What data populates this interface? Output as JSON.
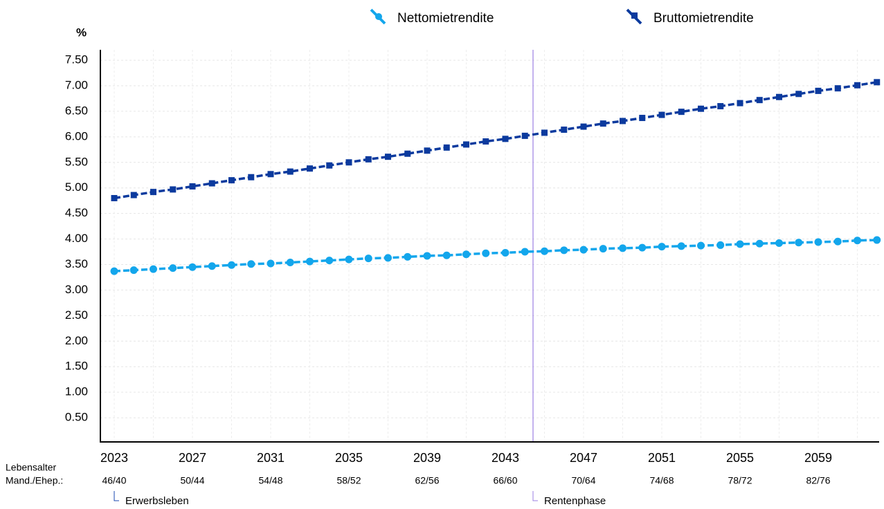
{
  "chart_data": {
    "type": "line",
    "y_label": "%",
    "categories": [
      "2023",
      null,
      null,
      null,
      "2027",
      null,
      null,
      null,
      "2031",
      null,
      null,
      null,
      "2035",
      null,
      null,
      null,
      "2039",
      null,
      null,
      null,
      "2043",
      null,
      null,
      null,
      "2047",
      null,
      null,
      null,
      "2051",
      null,
      null,
      null,
      "2055",
      null,
      null,
      null,
      "2059",
      null,
      null,
      null
    ],
    "age_labels": [
      "46/40",
      null,
      null,
      null,
      "50/44",
      null,
      null,
      null,
      "54/48",
      null,
      null,
      null,
      "58/52",
      null,
      null,
      null,
      "62/56",
      null,
      null,
      null,
      "66/60",
      null,
      null,
      null,
      "70/64",
      null,
      null,
      null,
      "74/68",
      null,
      null,
      null,
      "78/72",
      null,
      null,
      null,
      "82/76",
      null,
      null,
      null
    ],
    "row_labels": [
      "Lebensalter",
      "Mand./Ehep.:"
    ],
    "phases": [
      {
        "name": "Erwerbsleben",
        "color": "#1a47b0",
        "first_category": "2023"
      },
      {
        "name": "Rentenphase",
        "color": "#9b7fe3",
        "first_category": "2047"
      }
    ],
    "series": [
      {
        "name": "Nettomietrendite",
        "color": "#13a6ec",
        "marker": "circle",
        "values": [
          3.37,
          3.39,
          3.41,
          3.43,
          3.45,
          3.47,
          3.49,
          3.51,
          3.52,
          3.54,
          3.56,
          3.58,
          3.6,
          3.62,
          3.63,
          3.65,
          3.67,
          3.68,
          3.7,
          3.72,
          3.73,
          3.75,
          3.76,
          3.78,
          3.79,
          3.81,
          3.82,
          3.83,
          3.85,
          3.86,
          3.87,
          3.88,
          3.9,
          3.91,
          3.92,
          3.93,
          3.94,
          3.95,
          3.97,
          3.98
        ]
      },
      {
        "name": "Bruttomietrendite",
        "color": "#0b3a9e",
        "marker": "square",
        "values": [
          4.8,
          4.86,
          4.92,
          4.97,
          5.03,
          5.09,
          5.15,
          5.21,
          5.27,
          5.32,
          5.38,
          5.44,
          5.5,
          5.56,
          5.61,
          5.67,
          5.73,
          5.79,
          5.85,
          5.91,
          5.96,
          6.02,
          6.08,
          6.14,
          6.2,
          6.26,
          6.31,
          6.37,
          6.43,
          6.49,
          6.55,
          6.6,
          6.66,
          6.72,
          6.78,
          6.84,
          6.9,
          6.95,
          7.01,
          7.07
        ]
      }
    ],
    "ylim": [
      0,
      7.7
    ],
    "yticks": [
      {
        "value": 0.5,
        "label": "0.50"
      },
      {
        "value": 1,
        "label": "1.00"
      },
      {
        "value": 1.5,
        "label": "1.50"
      },
      {
        "value": 2,
        "label": "2.00"
      },
      {
        "value": 2.5,
        "label": "2.50"
      },
      {
        "value": 3,
        "label": "3.00"
      },
      {
        "value": 3.5,
        "label": "3.50"
      },
      {
        "value": 4,
        "label": "4.00"
      },
      {
        "value": 4.5,
        "label": "4.50"
      },
      {
        "value": 5,
        "label": "5.00"
      },
      {
        "value": 5.5,
        "label": "5.50"
      },
      {
        "value": 6,
        "label": "6.00"
      },
      {
        "value": 6.5,
        "label": "6.50"
      },
      {
        "value": 7,
        "label": "7.00"
      },
      {
        "value": 7.5,
        "label": "7.50"
      }
    ],
    "grid": true
  }
}
